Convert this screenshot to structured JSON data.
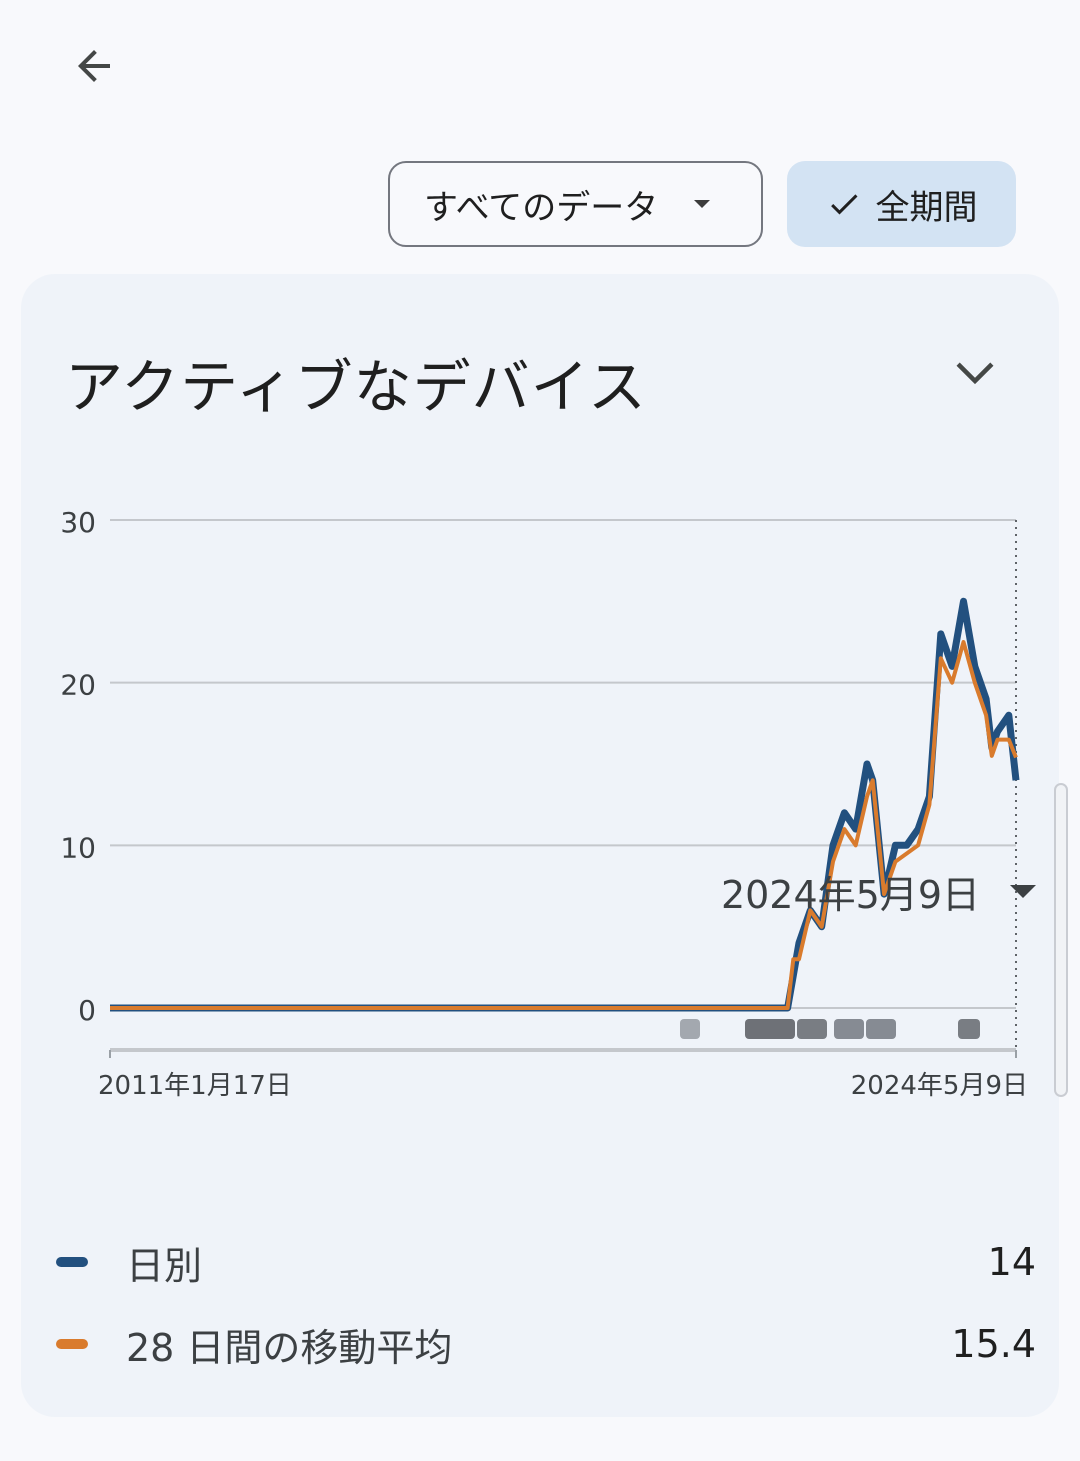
{
  "nav": {
    "back_icon": "arrow-back-icon"
  },
  "filters": {
    "data_dropdown_label": "すべてのデータ",
    "period_chip_label": "全期間",
    "period_chip_icon": "check-icon"
  },
  "card": {
    "title": "アクティブなデバイス",
    "collapse_icon": "chevron-down-icon"
  },
  "selected_date": "2024年5月9日",
  "legend": [
    {
      "label": "日別",
      "value": "14",
      "color": "#22507f"
    },
    {
      "label": "28 日間の移動平均",
      "value": "15.4",
      "color": "#d97b2d"
    }
  ],
  "chart_data": {
    "type": "line",
    "ylim": [
      0,
      30
    ],
    "y_ticks": [
      "0",
      "10",
      "20",
      "30"
    ],
    "x_tick_labels": [
      "2011年1月17日",
      "2024年5月9日"
    ],
    "grid": true,
    "series": [
      {
        "name": "日別",
        "color": "#22507f",
        "points": [
          [
            "2011年1月17日",
            0
          ],
          [
            "2021年1月",
            0
          ],
          [
            "2021年2月",
            2
          ],
          [
            "2021年3月",
            4
          ],
          [
            "2021年5月",
            6
          ],
          [
            "2021年7月",
            5
          ],
          [
            "2021年9月",
            10
          ],
          [
            "2021年11月",
            12
          ],
          [
            "2022年1月",
            11
          ],
          [
            "2022年3月",
            15
          ],
          [
            "2022年4月",
            14
          ],
          [
            "2022年6月",
            7
          ],
          [
            "2022年8月",
            10
          ],
          [
            "2022年10月",
            10
          ],
          [
            "2022年12月",
            11
          ],
          [
            "2023年2月",
            13
          ],
          [
            "2023年4月",
            23
          ],
          [
            "2023年6月",
            21
          ],
          [
            "2023年8月",
            25
          ],
          [
            "2023年10月",
            21
          ],
          [
            "2023年12月",
            19
          ],
          [
            "2024年1月",
            16
          ],
          [
            "2024年2月",
            17
          ],
          [
            "2024年4月",
            18
          ],
          [
            "2024年5月9日",
            14
          ]
        ]
      },
      {
        "name": "28 日間の移動平均",
        "color": "#d97b2d",
        "points": [
          [
            "2011年1月17日",
            0
          ],
          [
            "2021年1月",
            0
          ],
          [
            "2021年2月",
            3
          ],
          [
            "2021年3月",
            3
          ],
          [
            "2021年5月",
            6
          ],
          [
            "2021年7月",
            5
          ],
          [
            "2021年9月",
            9
          ],
          [
            "2021年11月",
            11
          ],
          [
            "2022年1月",
            10
          ],
          [
            "2022年3月",
            13
          ],
          [
            "2022年4月",
            14
          ],
          [
            "2022年6月",
            7
          ],
          [
            "2022年8月",
            9
          ],
          [
            "2022年10月",
            9.5
          ],
          [
            "2022年12月",
            10
          ],
          [
            "2023年2月",
            12.5
          ],
          [
            "2023年4月",
            21.5
          ],
          [
            "2023年6月",
            20
          ],
          [
            "2023年8月",
            22.5
          ],
          [
            "2023年10月",
            20
          ],
          [
            "2023年12月",
            18
          ],
          [
            "2024年1月",
            15.5
          ],
          [
            "2024年2月",
            16.5
          ],
          [
            "2024年4月",
            16.5
          ],
          [
            "2024年5月9日",
            15.4
          ]
        ]
      }
    ],
    "event_markers_count": 6
  }
}
